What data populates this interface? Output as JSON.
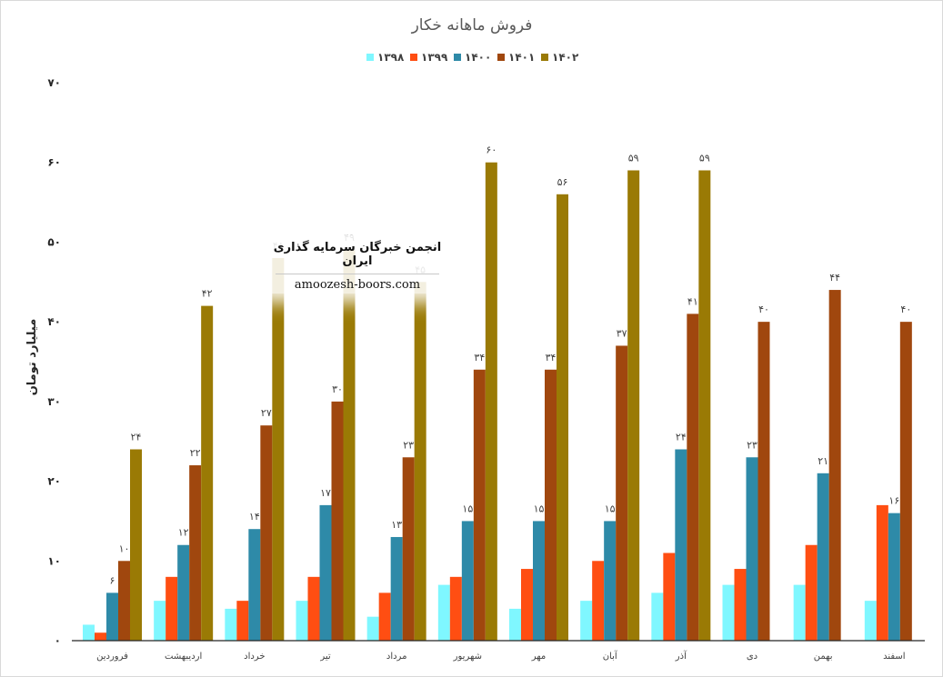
{
  "chart_data": {
    "type": "bar",
    "title": "فروش ماهانه خکار",
    "ylabel": "میلیارد تومان",
    "ylim": [
      0,
      70
    ],
    "yticks": [
      0,
      10,
      20,
      30,
      40,
      50,
      60,
      70
    ],
    "ytick_labels": [
      "۰",
      "۱۰",
      "۲۰",
      "۳۰",
      "۴۰",
      "۵۰",
      "۶۰",
      "۷۰"
    ],
    "grid": false,
    "legend_position": "top",
    "categories": [
      "فروردین",
      "اردیبهشت",
      "خرداد",
      "تیر",
      "مرداد",
      "شهریور",
      "مهر",
      "آبان",
      "آذر",
      "دی",
      "بهمن",
      "اسفند"
    ],
    "series": [
      {
        "name": "۱۳۹۸",
        "color": "#7ff7ff",
        "values": [
          2,
          5,
          4,
          5,
          3,
          7,
          4,
          5,
          6,
          7,
          7,
          5
        ],
        "labels": [
          "",
          "",
          "",
          "",
          "",
          "",
          "",
          "",
          "",
          "",
          "",
          ""
        ]
      },
      {
        "name": "۱۳۹۹",
        "color": "#ff4e12",
        "values": [
          1,
          8,
          5,
          8,
          6,
          8,
          9,
          10,
          11,
          9,
          12,
          17
        ],
        "labels": [
          "",
          "",
          "",
          "",
          "",
          "",
          "",
          "",
          "",
          "",
          "",
          ""
        ]
      },
      {
        "name": "۱۴۰۰",
        "color": "#2e8aa8",
        "values": [
          6,
          12,
          14,
          17,
          13,
          15,
          15,
          15,
          24,
          23,
          21,
          16
        ],
        "labels": [
          "۶",
          "۱۲",
          "۱۴",
          "۱۷",
          "۱۳",
          "۱۵",
          "۱۵",
          "۱۵",
          "۲۴",
          "۲۳",
          "۲۱",
          "۱۶"
        ]
      },
      {
        "name": "۱۴۰۱",
        "color": "#a0470e",
        "values": [
          10,
          22,
          27,
          30,
          23,
          34,
          34,
          37,
          41,
          40,
          44,
          40
        ],
        "labels": [
          "۱۰",
          "۲۲",
          "۲۷",
          "۳۰",
          "۲۳",
          "۳۴",
          "۳۴",
          "۳۷",
          "۴۱",
          "۴۰",
          "۴۴",
          "۴۰"
        ]
      },
      {
        "name": "۱۴۰۲",
        "color": "#9a7a05",
        "values": [
          24,
          42,
          48,
          49,
          45,
          60,
          56,
          59,
          59,
          null,
          null,
          null
        ],
        "labels": [
          "۲۴",
          "۴۲",
          "۴۸",
          "۴۹",
          "۴۵",
          "۶۰",
          "۵۶",
          "۵۹",
          "۵۹",
          "",
          "",
          ""
        ]
      }
    ]
  },
  "watermark": {
    "organization": "انجمن خبرگان سرمایه گذاری ایران",
    "url": "amoozesh-boors.com"
  }
}
